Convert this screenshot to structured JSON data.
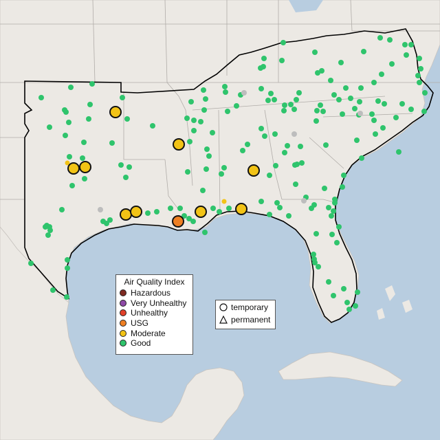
{
  "aqi_legend": {
    "title": "Air Quality Index",
    "items": [
      {
        "label": "Hazardous",
        "color": "#7e2a22"
      },
      {
        "label": "Very Unhealthy",
        "color": "#8e4aa6"
      },
      {
        "label": "Unhealthy",
        "color": "#e0402a"
      },
      {
        "label": "USG",
        "color": "#ee7f23"
      },
      {
        "label": "Moderate",
        "color": "#f2c316"
      },
      {
        "label": "Good",
        "color": "#2fc46c"
      }
    ]
  },
  "type_legend": {
    "items": [
      {
        "label": "temporary",
        "icon": "circle-icon"
      },
      {
        "label": "permanent",
        "icon": "triangle-icon"
      }
    ]
  },
  "colors": {
    "ocean": "#b8cde0",
    "land": "#ece9e4",
    "good": "#2fc46c",
    "moderate": "#f2c316",
    "usg": "#ee7f23",
    "no_data": "#bdbdbd",
    "region_outline": "#000000"
  }
}
